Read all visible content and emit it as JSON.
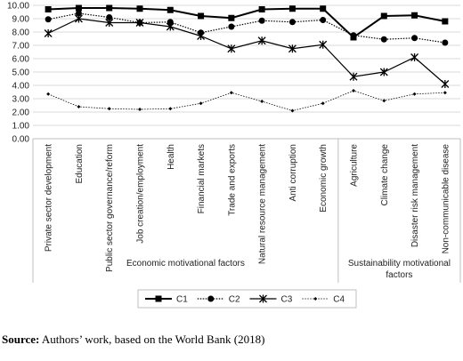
{
  "chart_data": {
    "type": "line",
    "categories": [
      "Private sector development",
      "Education",
      "Public sector governance/reform",
      "Job creation/employment",
      "Health",
      "Financial markets",
      "Trade and exports",
      "Natural resource management",
      "Anti corruption",
      "Economic growth",
      "Agriculture",
      "Climate change",
      "Disaster risk management",
      "Non-communicable disease"
    ],
    "groups": [
      {
        "label": "Economic motivational factors",
        "count": 10
      },
      {
        "label": "Sustainability motivational factors",
        "count": 4
      }
    ],
    "series": [
      {
        "name": "C1",
        "color": "#000000",
        "marker": "square",
        "dash": "solid",
        "values": [
          9.7,
          9.8,
          9.8,
          9.75,
          9.65,
          9.2,
          9.05,
          9.7,
          9.75,
          9.75,
          7.6,
          9.2,
          9.25,
          8.8
        ]
      },
      {
        "name": "C2",
        "color": "#000000",
        "marker": "circle",
        "dash": "dotted",
        "values": [
          8.95,
          9.4,
          9.1,
          8.7,
          8.75,
          7.95,
          8.4,
          8.85,
          8.75,
          8.9,
          7.75,
          7.45,
          7.55,
          7.2
        ]
      },
      {
        "name": "C3",
        "color": "#000000",
        "marker": "asterisk",
        "dash": "solid",
        "values": [
          7.9,
          9.0,
          8.7,
          8.7,
          8.4,
          7.7,
          6.75,
          7.35,
          6.75,
          7.05,
          4.65,
          5.0,
          6.1,
          4.1
        ]
      },
      {
        "name": "C4",
        "color": "#000000",
        "marker": "diamond",
        "dash": "dotted",
        "values": [
          3.35,
          2.4,
          2.25,
          2.2,
          2.25,
          2.65,
          3.45,
          2.8,
          2.1,
          2.65,
          3.6,
          2.85,
          3.35,
          3.45
        ]
      }
    ],
    "ylim": [
      0,
      10
    ],
    "yticks": [
      {
        "value": 0,
        "label": "0.00"
      },
      {
        "value": 1,
        "label": "1.00"
      },
      {
        "value": 2,
        "label": "2.00"
      },
      {
        "value": 3,
        "label": "3.00"
      },
      {
        "value": 4,
        "label": "4.00"
      },
      {
        "value": 5,
        "label": "5.00"
      },
      {
        "value": 6,
        "label": "6.00"
      },
      {
        "value": 7,
        "label": "7.00"
      },
      {
        "value": 8,
        "label": "8.00"
      },
      {
        "value": 9,
        "label": "9.00"
      },
      {
        "value": 10,
        "label": "10.00"
      }
    ],
    "grid": true,
    "legend": "bottom",
    "note": {
      "label": "Source:",
      "text": " Authors’ work, based on the World Bank (2018)"
    }
  }
}
